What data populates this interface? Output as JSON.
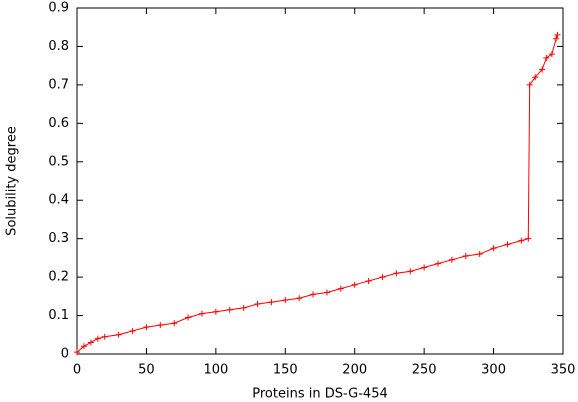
{
  "chart_data": {
    "type": "line",
    "xlabel": "Proteins in DS-G-454",
    "ylabel": "Solubility degree",
    "x": [
      0,
      5,
      10,
      15,
      20,
      30,
      40,
      50,
      60,
      70,
      80,
      90,
      100,
      110,
      120,
      130,
      140,
      150,
      160,
      170,
      180,
      190,
      200,
      210,
      220,
      230,
      240,
      250,
      260,
      270,
      280,
      290,
      300,
      310,
      320,
      325,
      326,
      330,
      335,
      338,
      342,
      345,
      346
    ],
    "series": [
      {
        "color": "#ff0000",
        "values": [
          0.005,
          0.02,
          0.03,
          0.04,
          0.045,
          0.05,
          0.06,
          0.07,
          0.075,
          0.08,
          0.095,
          0.105,
          0.11,
          0.115,
          0.12,
          0.13,
          0.135,
          0.14,
          0.145,
          0.155,
          0.16,
          0.17,
          0.18,
          0.19,
          0.2,
          0.21,
          0.215,
          0.225,
          0.235,
          0.245,
          0.255,
          0.26,
          0.275,
          0.285,
          0.295,
          0.3,
          0.7,
          0.72,
          0.74,
          0.77,
          0.78,
          0.82,
          0.83
        ]
      }
    ],
    "xlim": [
      0,
      350
    ],
    "xticks": [
      0,
      50,
      100,
      150,
      200,
      250,
      300,
      350
    ],
    "ylim": [
      0,
      0.9
    ],
    "yticks": [
      0,
      0.1,
      0.2,
      0.3,
      0.4,
      0.5,
      0.6,
      0.7,
      0.8,
      0.9
    ],
    "marker": "+"
  }
}
